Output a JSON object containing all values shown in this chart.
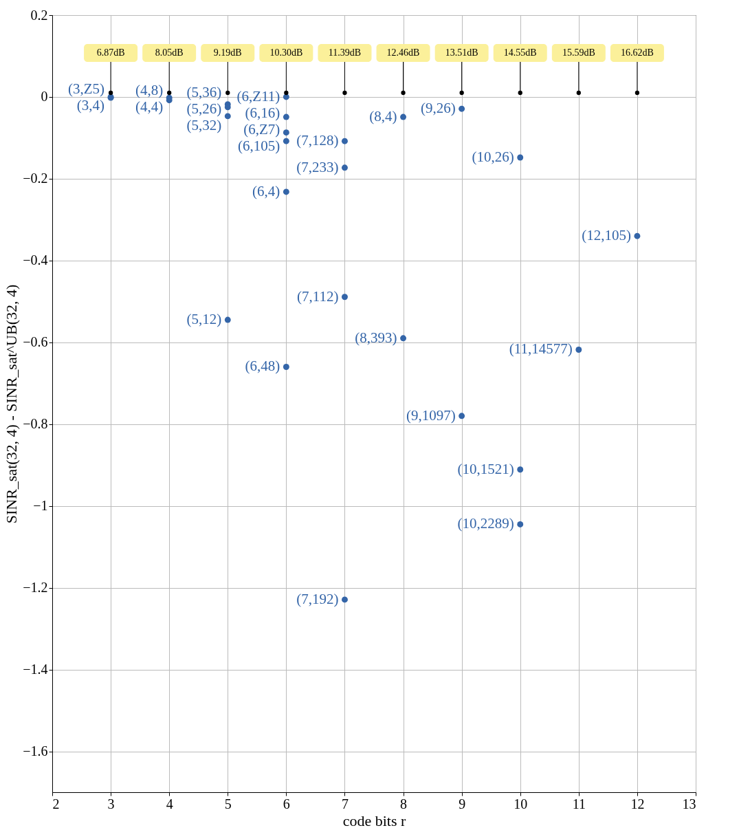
{
  "chart_data": {
    "type": "scatter",
    "xlabel": "code bits r",
    "ylabel": "SINR_sat(32, 4) - SINR_sat^UB(32, 4)",
    "xlim": [
      2,
      13
    ],
    "xticks": [
      2,
      3,
      4,
      5,
      6,
      7,
      8,
      9,
      10,
      11,
      12,
      13
    ],
    "ylim": [
      -1.7,
      0.2
    ],
    "yticks": [
      -1.6,
      -1.4,
      -1.2,
      -1,
      -0.8,
      -0.6,
      -0.4,
      -0.2,
      0,
      0.2
    ],
    "grid": true,
    "marker": "circle",
    "series": [
      {
        "color": "#3465a8",
        "x": [
          3,
          3,
          4,
          4,
          5,
          5,
          5,
          5,
          6,
          6,
          6,
          6,
          6,
          6,
          7,
          7,
          7,
          7,
          8,
          8,
          9,
          9,
          10,
          10,
          10,
          11,
          12
        ],
        "values": [
          0,
          -0.002,
          -0.002,
          -0.008,
          -0.018,
          -0.025,
          -0.047,
          -0.545,
          0,
          -0.049,
          -0.087,
          -0.108,
          -0.232,
          -0.66,
          -0.108,
          -0.173,
          -0.489,
          -1.229,
          -0.049,
          -0.59,
          -0.029,
          -0.78,
          -0.148,
          -0.911,
          -1.045,
          -0.618,
          -0.34
        ]
      },
      {
        "color": "#000000",
        "x": [
          3,
          4,
          5,
          6,
          7,
          8,
          9,
          10,
          11,
          12
        ],
        "values": [
          0.01,
          0.01,
          0.01,
          0.01,
          0.01,
          0.01,
          0.01,
          0.01,
          0.01,
          0.01
        ]
      }
    ],
    "annotations": [
      {
        "text": "(3,Z5)",
        "x": 3,
        "y": 0
      },
      {
        "text": "(3,4)",
        "x": 3,
        "y": -0.002
      },
      {
        "text": "(4,8)",
        "x": 4,
        "y": -0.002
      },
      {
        "text": "(4,4)",
        "x": 4,
        "y": -0.008
      },
      {
        "text": "(5,36)",
        "x": 5,
        "y": -0.018
      },
      {
        "text": "(5,26)",
        "x": 5,
        "y": -0.025
      },
      {
        "text": "(5,32)",
        "x": 5,
        "y": -0.047
      },
      {
        "text": "(5,12)",
        "x": 5,
        "y": -0.545
      },
      {
        "text": "(6,Z11)",
        "x": 6,
        "y": 0
      },
      {
        "text": "(6,16)",
        "x": 6,
        "y": -0.049
      },
      {
        "text": "(6,Z7)",
        "x": 6,
        "y": -0.087
      },
      {
        "text": "(6,105)",
        "x": 6,
        "y": -0.108
      },
      {
        "text": "(6,4)",
        "x": 6,
        "y": -0.232
      },
      {
        "text": "(6,48)",
        "x": 6,
        "y": -0.66
      },
      {
        "text": "(7,128)",
        "x": 7,
        "y": -0.108
      },
      {
        "text": "(7,233)",
        "x": 7,
        "y": -0.173
      },
      {
        "text": "(7,112)",
        "x": 7,
        "y": -0.489
      },
      {
        "text": "(7,192)",
        "x": 7,
        "y": -1.229
      },
      {
        "text": "(8,4)",
        "x": 8,
        "y": -0.049
      },
      {
        "text": "(8,393)",
        "x": 8,
        "y": -0.59
      },
      {
        "text": "(9,26)",
        "x": 9,
        "y": -0.029
      },
      {
        "text": "(9,1097)",
        "x": 9,
        "y": -0.78
      },
      {
        "text": "(10,26)",
        "x": 10,
        "y": -0.148
      },
      {
        "text": "(10,1521)",
        "x": 10,
        "y": -0.911
      },
      {
        "text": "(10,2289)",
        "x": 10,
        "y": -1.045
      },
      {
        "text": "(11,14577)",
        "x": 11,
        "y": -0.618
      },
      {
        "text": "(12,105)",
        "x": 12,
        "y": -0.34
      },
      {
        "text": "6.87dB",
        "x": 3,
        "y": 0.01
      },
      {
        "text": "8.05dB",
        "x": 4,
        "y": 0.01
      },
      {
        "text": "9.19dB",
        "x": 5,
        "y": 0.01
      },
      {
        "text": "10.30dB",
        "x": 6,
        "y": 0.01
      },
      {
        "text": "11.39dB",
        "x": 7,
        "y": 0.01
      },
      {
        "text": "12.46dB",
        "x": 8,
        "y": 0.01
      },
      {
        "text": "13.51dB",
        "x": 9,
        "y": 0.01
      },
      {
        "text": "14.55dB",
        "x": 10,
        "y": 0.01
      },
      {
        "text": "15.59dB",
        "x": 11,
        "y": 0.01
      },
      {
        "text": "16.62dB",
        "x": 12,
        "y": 0.01
      }
    ]
  }
}
